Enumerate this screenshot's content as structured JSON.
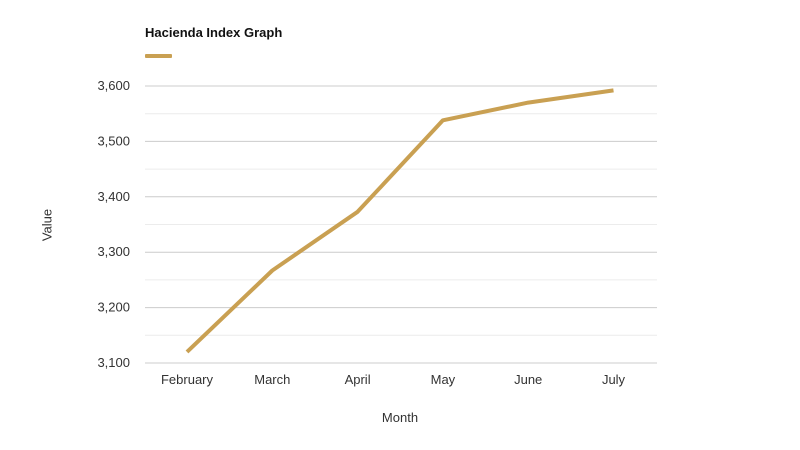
{
  "chart_data": {
    "type": "line",
    "title": "Hacienda Index Graph",
    "xlabel": "Month",
    "ylabel": "Value",
    "categories": [
      "February",
      "March",
      "April",
      "May",
      "June",
      "July"
    ],
    "series": [
      {
        "name": "Hacienda Index Graph",
        "values": [
          3120,
          3267,
          3373,
          3538,
          3570,
          3592
        ],
        "color": "#c9a052"
      }
    ],
    "ylim": [
      3100,
      3600
    ],
    "yticks": [
      3100,
      3200,
      3300,
      3400,
      3500,
      3600
    ],
    "ytick_labels": [
      "3,100",
      "3,200",
      "3,300",
      "3,400",
      "3,500",
      "3,600"
    ],
    "grid": true,
    "legend": "top-left"
  },
  "colors": {
    "series": "#c9a052",
    "grid_major": "#cccccc",
    "grid_minor": "#ececec"
  }
}
